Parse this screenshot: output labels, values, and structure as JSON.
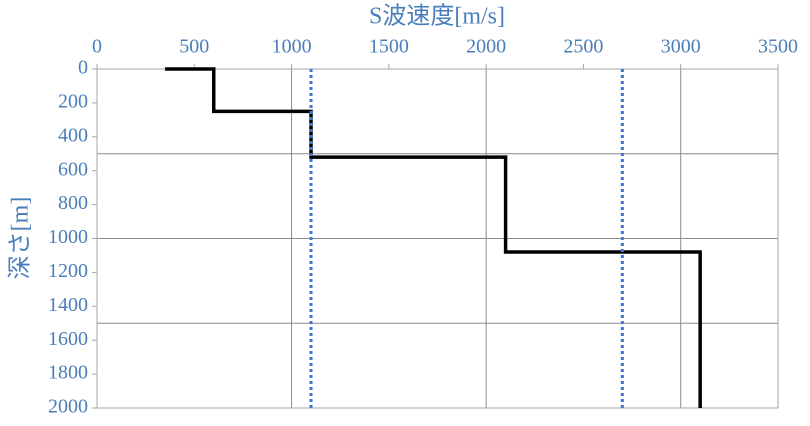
{
  "chart_data": {
    "type": "line",
    "x_label": "S波速度[m/s]",
    "y_label": "深さ[m]",
    "xlim": [
      0,
      3500
    ],
    "xticks": [
      0,
      500,
      1000,
      1500,
      2000,
      2500,
      3000,
      3500
    ],
    "ylim": [
      2000,
      0
    ],
    "yticks": [
      0,
      200,
      400,
      600,
      800,
      1000,
      1200,
      1400,
      1600,
      1800,
      2000
    ],
    "xgrid": [
      1000,
      2000,
      3000
    ],
    "ygrid": [
      500,
      1000,
      1500
    ],
    "series": [
      {
        "color": "#000000",
        "style": "solid",
        "x": [
          350,
          600,
          600,
          1100,
          1100,
          2100,
          2100,
          3100,
          3100
        ],
        "values": [
          0,
          0,
          250,
          250,
          520,
          520,
          1080,
          1080,
          2000
        ]
      },
      {
        "color": "#3a78d0",
        "style": "dotted",
        "x": [
          1100,
          1100
        ],
        "values": [
          0,
          2000
        ]
      },
      {
        "color": "#3a78d0",
        "style": "dotted",
        "x": [
          2700,
          2700
        ],
        "values": [
          0,
          2000
        ]
      }
    ]
  }
}
